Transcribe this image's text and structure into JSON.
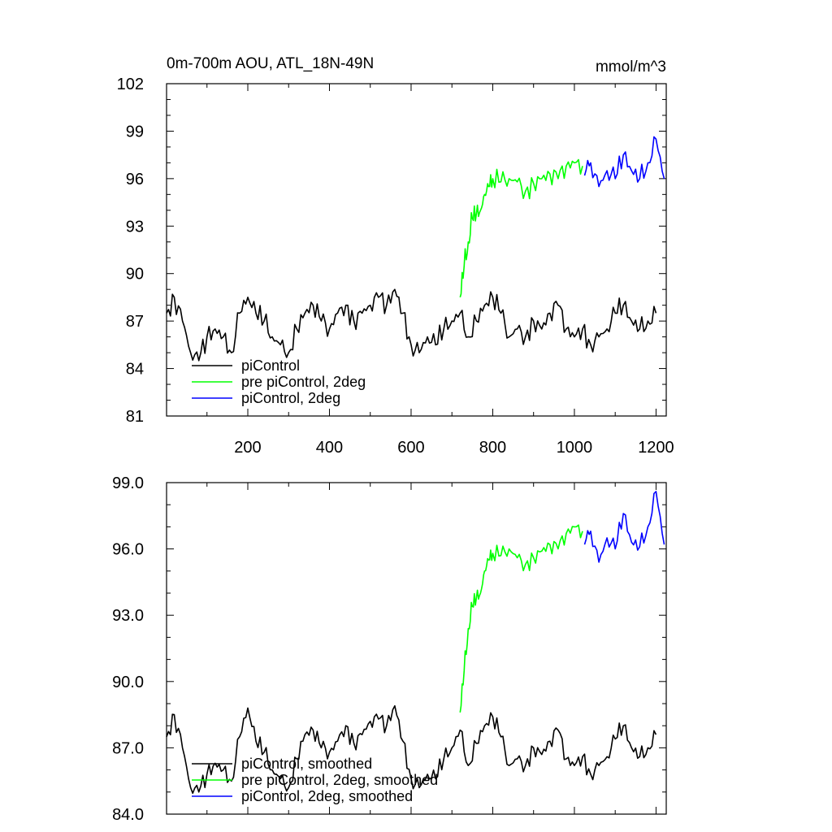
{
  "chart_data": [
    {
      "type": "line",
      "title": "0m-700m AOU, ATL_18N-49N",
      "units": "mmol/m^3",
      "xlim": [
        1,
        1225
      ],
      "ylim": [
        81,
        102
      ],
      "x_ticks": [
        200,
        400,
        600,
        800,
        1000,
        1200
      ],
      "x_tick_labels": [
        "200",
        "400",
        "600",
        "800",
        "1000",
        "1200"
      ],
      "y_ticks": [
        81,
        84,
        87,
        90,
        93,
        96,
        99,
        102
      ],
      "y_tick_labels": [
        "81",
        "84",
        "87",
        "90",
        "93",
        "96",
        "99",
        "102"
      ],
      "legend_position": "bottom-left",
      "series": [
        {
          "name": "piControl",
          "color": "#000000",
          "x": [
            1,
            20,
            40,
            60,
            80,
            100,
            120,
            140,
            160,
            180,
            200,
            220,
            240,
            260,
            280,
            300,
            320,
            340,
            360,
            380,
            400,
            420,
            440,
            460,
            480,
            500,
            520,
            540,
            560,
            580,
            600,
            620,
            640,
            660,
            680,
            700,
            720,
            740,
            760,
            780,
            800,
            820,
            840,
            860,
            880,
            900,
            920,
            940,
            960,
            980,
            1000,
            1020,
            1040,
            1060,
            1080,
            1100,
            1120,
            1140,
            1160,
            1180,
            1200
          ],
          "y": [
            87.5,
            88.5,
            87.0,
            85.0,
            84.5,
            86.0,
            86.5,
            86.0,
            85.0,
            87.5,
            88.5,
            87.5,
            87.0,
            86.0,
            85.5,
            85.0,
            86.5,
            87.5,
            88.0,
            87.0,
            86.5,
            87.5,
            88.0,
            87.0,
            87.5,
            88.0,
            88.5,
            88.0,
            89.0,
            87.5,
            85.5,
            85.0,
            86.0,
            85.5,
            86.5,
            87.0,
            87.5,
            86.0,
            87.0,
            88.0,
            88.5,
            87.5,
            86.0,
            86.5,
            86.0,
            87.0,
            86.5,
            87.5,
            88.0,
            86.5,
            86.0,
            86.5,
            85.5,
            86.0,
            86.5,
            87.5,
            88.0,
            87.0,
            86.5,
            87.0,
            87.5
          ]
        },
        {
          "name": "pre piControl, 2deg",
          "color": "#00ff00",
          "x": [
            720,
            730,
            740,
            750,
            760,
            770,
            780,
            790,
            800,
            820,
            840,
            860,
            880,
            900,
            920,
            940,
            960,
            980,
            1000,
            1020
          ],
          "y": [
            88.5,
            90.5,
            92.0,
            93.5,
            93.8,
            94.0,
            95.0,
            95.5,
            96.0,
            95.8,
            96.0,
            95.8,
            95.2,
            95.7,
            96.0,
            96.3,
            96.0,
            96.8,
            97.0,
            96.8
          ]
        },
        {
          "name": "piControl, 2deg",
          "color": "#0000ff",
          "x": [
            1025,
            1040,
            1060,
            1080,
            1100,
            1120,
            1140,
            1160,
            1180,
            1200,
            1220
          ],
          "y": [
            96.2,
            97.0,
            95.5,
            96.5,
            96.0,
            97.5,
            96.5,
            96.0,
            97.0,
            98.5,
            96.0
          ]
        }
      ]
    },
    {
      "type": "line",
      "xlim": [
        1,
        1225
      ],
      "ylim": [
        84,
        99
      ],
      "x_ticks": [
        200,
        400,
        600,
        800,
        1000,
        1200
      ],
      "y_ticks": [
        84,
        87,
        90,
        93,
        96,
        99
      ],
      "y_tick_labels": [
        "84.0",
        "87.0",
        "90.0",
        "93.0",
        "96.0",
        "99.0"
      ],
      "legend_position": "bottom-left",
      "series": [
        {
          "name": "piControl, smoothed",
          "color": "#000000",
          "x": [
            1,
            20,
            40,
            60,
            80,
            100,
            120,
            140,
            160,
            180,
            200,
            220,
            240,
            260,
            280,
            300,
            320,
            340,
            360,
            380,
            400,
            420,
            440,
            460,
            480,
            500,
            520,
            540,
            560,
            580,
            600,
            620,
            640,
            660,
            680,
            700,
            720,
            740,
            760,
            780,
            800,
            820,
            840,
            860,
            880,
            900,
            920,
            940,
            960,
            980,
            1000,
            1020,
            1040,
            1060,
            1080,
            1100,
            1120,
            1140,
            1160,
            1180,
            1200
          ],
          "y": [
            87.5,
            88.5,
            87.0,
            85.2,
            85.0,
            85.8,
            86.3,
            86.0,
            85.5,
            87.5,
            88.8,
            87.3,
            86.8,
            86.0,
            85.6,
            85.2,
            86.5,
            87.6,
            87.8,
            87.0,
            86.8,
            87.3,
            88.0,
            87.2,
            87.6,
            88.2,
            88.3,
            88.0,
            88.9,
            87.3,
            85.6,
            85.2,
            85.8,
            85.6,
            86.5,
            87.0,
            87.8,
            86.2,
            87.2,
            88.0,
            88.4,
            87.5,
            86.2,
            86.5,
            86.2,
            87.0,
            86.7,
            87.3,
            87.8,
            86.5,
            86.2,
            86.6,
            85.8,
            86.2,
            86.6,
            87.4,
            88.0,
            87.0,
            86.6,
            87.0,
            87.6
          ]
        },
        {
          "name": "pre piControl, 2deg, smoothed",
          "color": "#00ff00",
          "x": [
            720,
            730,
            740,
            750,
            760,
            770,
            780,
            790,
            800,
            820,
            840,
            860,
            880,
            900,
            920,
            940,
            960,
            980,
            1000,
            1020
          ],
          "y": [
            88.6,
            90.5,
            92.4,
            93.4,
            93.8,
            94.0,
            95.0,
            95.5,
            95.8,
            95.7,
            96.0,
            95.6,
            95.3,
            95.6,
            95.9,
            96.2,
            96.0,
            96.7,
            97.0,
            96.8
          ]
        },
        {
          "name": "piControl, 2deg, smoothed",
          "color": "#0000ff",
          "x": [
            1025,
            1040,
            1060,
            1080,
            1100,
            1120,
            1140,
            1160,
            1180,
            1200,
            1220
          ],
          "y": [
            96.2,
            96.8,
            95.4,
            96.5,
            96.0,
            97.6,
            96.3,
            96.1,
            97.0,
            98.6,
            96.2
          ]
        }
      ]
    }
  ]
}
